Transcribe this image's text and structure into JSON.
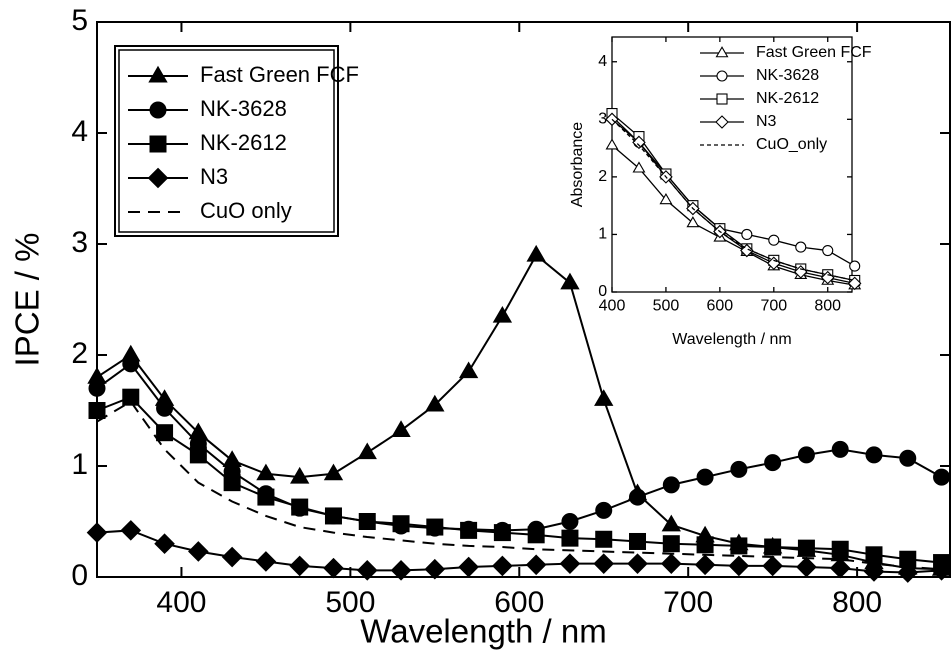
{
  "chart_data": [
    {
      "type": "line",
      "xlabel": "Wavelength / nm",
      "ylabel": "IPCE / %",
      "x": [
        350,
        370,
        390,
        410,
        430,
        450,
        470,
        490,
        510,
        530,
        550,
        570,
        590,
        610,
        630,
        650,
        670,
        690,
        710,
        730,
        750,
        770,
        790,
        810,
        830,
        850
      ],
      "xlim": [
        350,
        855
      ],
      "xticks": [
        400,
        500,
        600,
        700,
        800
      ],
      "ylim": [
        0,
        5
      ],
      "yticks": [
        0,
        1,
        2,
        3,
        4,
        5
      ],
      "markers": "filled",
      "legend": "upper left",
      "series": [
        {
          "name": "Fast Green FCF",
          "color": "#000000",
          "marker": "triangle",
          "values": [
            1.8,
            2.0,
            1.6,
            1.3,
            1.05,
            0.93,
            0.9,
            0.93,
            1.12,
            1.32,
            1.55,
            1.85,
            2.35,
            2.9,
            2.65,
            1.6,
            0.75,
            0.47,
            0.37,
            0.3,
            0.27,
            0.24,
            0.2,
            0.13,
            0.08,
            0.07
          ]
        },
        {
          "name": "NK-3628",
          "color": "#000000",
          "marker": "circle",
          "values": [
            1.7,
            1.92,
            1.52,
            1.2,
            0.95,
            0.75,
            0.62,
            0.55,
            0.5,
            0.46,
            0.44,
            0.43,
            0.42,
            0.43,
            0.5,
            0.6,
            0.72,
            0.83,
            0.9,
            0.97,
            1.03,
            1.1,
            1.15,
            1.1,
            1.07,
            0.9
          ]
        },
        {
          "name": "NK-2612",
          "color": "#000000",
          "marker": "square",
          "values": [
            1.5,
            1.62,
            1.3,
            1.1,
            0.85,
            0.72,
            0.63,
            0.55,
            0.5,
            0.48,
            0.45,
            0.42,
            0.4,
            0.38,
            0.35,
            0.34,
            0.32,
            0.3,
            0.29,
            0.28,
            0.27,
            0.26,
            0.25,
            0.2,
            0.16,
            0.13
          ]
        },
        {
          "name": "N3",
          "color": "#000000",
          "marker": "diamond",
          "values": [
            0.4,
            0.42,
            0.3,
            0.23,
            0.18,
            0.14,
            0.1,
            0.08,
            0.06,
            0.06,
            0.07,
            0.09,
            0.1,
            0.11,
            0.12,
            0.12,
            0.12,
            0.12,
            0.11,
            0.1,
            0.1,
            0.09,
            0.08,
            0.05,
            0.04,
            0.06
          ]
        },
        {
          "name": "CuO only",
          "color": "#000000",
          "line_style": "dashed",
          "values": [
            1.4,
            1.58,
            1.15,
            0.85,
            0.68,
            0.55,
            0.45,
            0.4,
            0.36,
            0.33,
            0.3,
            0.28,
            0.27,
            0.25,
            0.24,
            0.23,
            0.22,
            0.21,
            0.2,
            0.19,
            0.18,
            0.17,
            0.16,
            0.12,
            0.09,
            0.07
          ]
        }
      ]
    },
    {
      "type": "line",
      "xlabel": "Wavelength / nm",
      "ylabel": "Absorbance",
      "x": [
        400,
        450,
        500,
        550,
        600,
        650,
        700,
        750,
        800,
        850
      ],
      "xlim": [
        400,
        845
      ],
      "xticks": [
        400,
        500,
        600,
        700,
        800
      ],
      "ylim": [
        0,
        4.43
      ],
      "yticks": [
        0,
        1,
        2,
        3,
        4
      ],
      "markers": "open",
      "legend": "upper right",
      "series": [
        {
          "name": "Fast Green FCF",
          "color": "#000000",
          "marker": "triangle",
          "values": [
            2.55,
            2.15,
            1.6,
            1.2,
            0.95,
            0.7,
            0.45,
            0.3,
            0.2,
            0.12
          ]
        },
        {
          "name": "NK-3628",
          "color": "#000000",
          "marker": "circle",
          "values": [
            3.05,
            2.6,
            2.05,
            1.5,
            1.1,
            1.0,
            0.9,
            0.78,
            0.72,
            0.45
          ]
        },
        {
          "name": "NK-2612",
          "color": "#000000",
          "marker": "square",
          "values": [
            3.1,
            2.7,
            2.05,
            1.5,
            1.1,
            0.75,
            0.55,
            0.4,
            0.3,
            0.2
          ]
        },
        {
          "name": "N3",
          "color": "#000000",
          "marker": "diamond",
          "values": [
            3.0,
            2.6,
            2.0,
            1.45,
            1.05,
            0.72,
            0.5,
            0.35,
            0.25,
            0.15
          ]
        },
        {
          "name": "CuO_only",
          "color": "#000000",
          "line_style": "dashed",
          "values": [
            3.0,
            2.55,
            2.0,
            1.45,
            1.05,
            0.75,
            0.55,
            0.4,
            0.3,
            0.2
          ]
        }
      ]
    }
  ]
}
